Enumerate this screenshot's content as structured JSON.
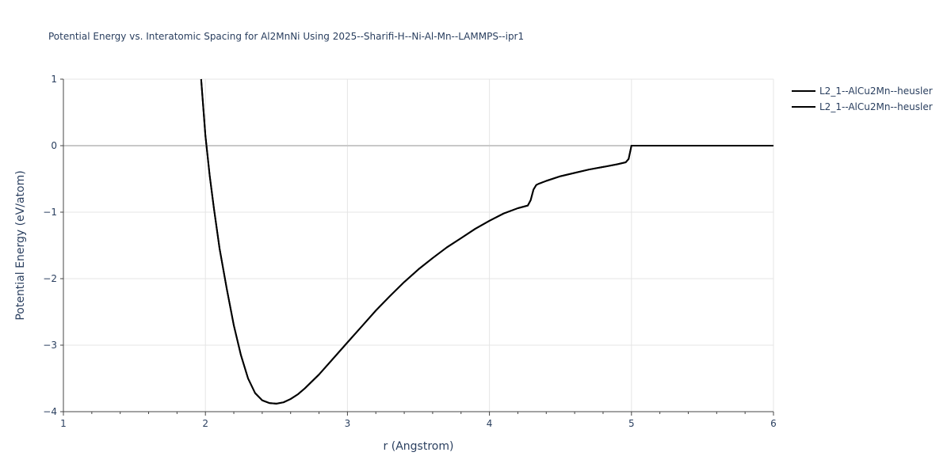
{
  "chart_data": {
    "type": "line",
    "title": "Potential Energy vs. Interatomic Spacing for Al2MnNi Using 2025--Sharifi-H--Ni-Al-Mn--LAMMPS--ipr1",
    "xlabel": "r (Angstrom)",
    "ylabel": "Potential Energy (eV/atom)",
    "xlim": [
      1,
      6
    ],
    "ylim": [
      -4,
      1
    ],
    "xticks": [
      1,
      2,
      3,
      4,
      5,
      6
    ],
    "yticks": [
      1,
      0,
      -1,
      -2,
      -3,
      -4
    ],
    "xtick_labels": [
      "1",
      "2",
      "3",
      "4",
      "5",
      "6"
    ],
    "ytick_labels": [
      "1",
      "0",
      "−1",
      "−2",
      "−3",
      "−4"
    ],
    "grid": true,
    "legend_position": "top-right",
    "series": [
      {
        "name": "L2_1--AlCu2Mn--heusler",
        "color": "#000000",
        "x": [
          1.97,
          2.0,
          2.03,
          2.06,
          2.1,
          2.15,
          2.2,
          2.25,
          2.3,
          2.35,
          2.4,
          2.45,
          2.5,
          2.55,
          2.6,
          2.65,
          2.7,
          2.8,
          2.9,
          3.0,
          3.1,
          3.2,
          3.3,
          3.4,
          3.5,
          3.6,
          3.7,
          3.8,
          3.9,
          4.0,
          4.1,
          4.2,
          4.27,
          4.29,
          4.31,
          4.33,
          4.35,
          4.4,
          4.5,
          4.6,
          4.7,
          4.8,
          4.9,
          4.96,
          4.98,
          5.0,
          5.2,
          5.5,
          6.0
        ],
        "y": [
          1.0,
          0.15,
          -0.45,
          -0.95,
          -1.55,
          -2.15,
          -2.7,
          -3.15,
          -3.5,
          -3.72,
          -3.83,
          -3.87,
          -3.88,
          -3.86,
          -3.81,
          -3.74,
          -3.65,
          -3.44,
          -3.2,
          -2.96,
          -2.72,
          -2.48,
          -2.26,
          -2.05,
          -1.86,
          -1.69,
          -1.53,
          -1.39,
          -1.25,
          -1.13,
          -1.02,
          -0.94,
          -0.9,
          -0.82,
          -0.66,
          -0.59,
          -0.57,
          -0.53,
          -0.46,
          -0.41,
          -0.36,
          -0.32,
          -0.28,
          -0.25,
          -0.2,
          0.0,
          0.0,
          0.0,
          0.0
        ]
      },
      {
        "name": "L2_1--AlCu2Mn--heusler",
        "color": "#000000",
        "x": [
          1.97,
          2.0,
          2.03,
          2.06,
          2.1,
          2.15,
          2.2,
          2.25,
          2.3,
          2.35,
          2.4,
          2.45,
          2.5,
          2.55,
          2.6,
          2.65,
          2.7,
          2.8,
          2.9,
          3.0,
          3.1,
          3.2,
          3.3,
          3.4,
          3.5,
          3.6,
          3.7,
          3.8,
          3.9,
          4.0,
          4.1,
          4.2,
          4.27,
          4.29,
          4.31,
          4.33,
          4.35,
          4.4,
          4.5,
          4.6,
          4.7,
          4.8,
          4.9,
          4.96,
          4.98,
          5.0,
          5.2,
          5.5,
          6.0
        ],
        "y": [
          1.0,
          0.15,
          -0.45,
          -0.95,
          -1.55,
          -2.15,
          -2.7,
          -3.15,
          -3.5,
          -3.72,
          -3.83,
          -3.87,
          -3.88,
          -3.86,
          -3.81,
          -3.74,
          -3.65,
          -3.44,
          -3.2,
          -2.96,
          -2.72,
          -2.48,
          -2.26,
          -2.05,
          -1.86,
          -1.69,
          -1.53,
          -1.39,
          -1.25,
          -1.13,
          -1.02,
          -0.94,
          -0.9,
          -0.82,
          -0.66,
          -0.59,
          -0.57,
          -0.53,
          -0.46,
          -0.41,
          -0.36,
          -0.32,
          -0.28,
          -0.25,
          -0.2,
          0.0,
          0.0,
          0.0,
          0.0
        ]
      }
    ]
  }
}
